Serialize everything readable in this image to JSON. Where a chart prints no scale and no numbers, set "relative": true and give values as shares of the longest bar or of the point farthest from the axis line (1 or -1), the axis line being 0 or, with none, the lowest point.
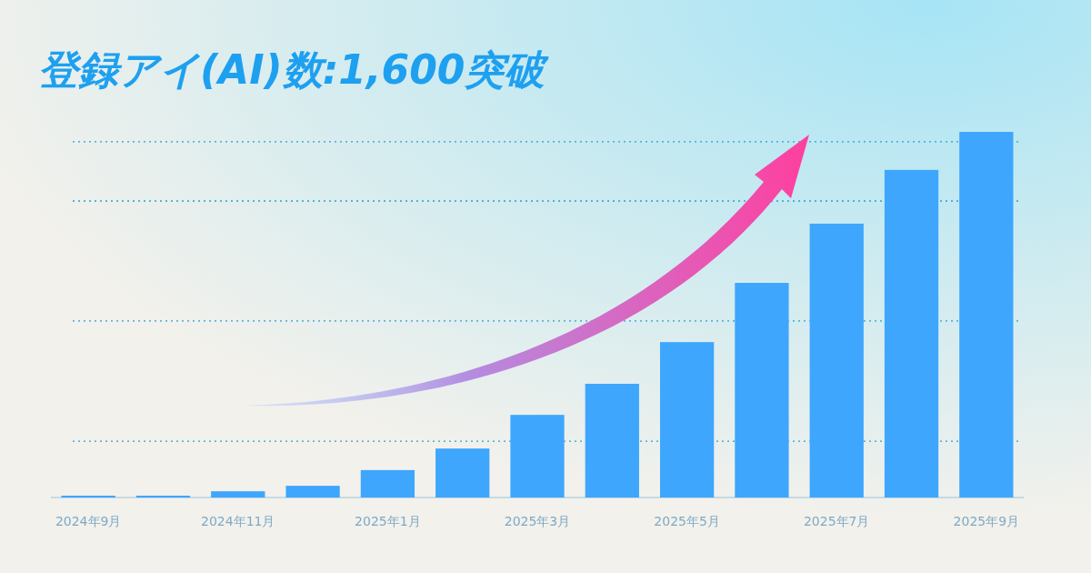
{
  "chart_data": {
    "type": "bar",
    "title": "登録アイ(AI)数:1,600突破",
    "relative": true,
    "categories": [
      "2024年9月",
      null,
      "2024年11月",
      null,
      "2025年1月",
      null,
      "2025年3月",
      null,
      "2025年5月",
      null,
      "2025年7月",
      null,
      "2025年9月"
    ],
    "series": [
      {
        "color": "#3ea6fd",
        "values": [
          0.005,
          0.005,
          0.017,
          0.032,
          0.075,
          0.134,
          0.226,
          0.311,
          0.425,
          0.587,
          0.749,
          0.896,
          1
        ]
      }
    ],
    "ref_lines": [
      {
        "axis": "y",
        "value": 0.154,
        "color": "#2aa0d0",
        "line_style": "dotted"
      },
      {
        "axis": "y",
        "value": 0.483,
        "color": "#2aa0d0",
        "line_style": "dotted"
      },
      {
        "axis": "y",
        "value": 0.811,
        "color": "#2aa0d0",
        "line_style": "dotted"
      },
      {
        "axis": "y",
        "value": 0.973,
        "color": "#2aa0d0",
        "line_style": "dotted"
      }
    ],
    "tick_labels": "x"
  }
}
